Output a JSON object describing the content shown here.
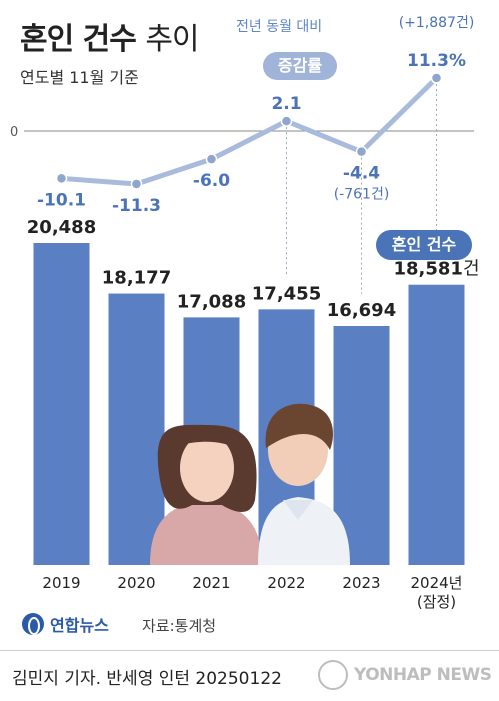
{
  "header": {
    "title_bold": "혼인 건수",
    "title_light": "추이",
    "subtitle": "연도별 11월 기준",
    "rate_header": "전년 동월 대비",
    "rate_badge": "증감률",
    "count_badge": "혼인 건수"
  },
  "chart_data": {
    "type": "bar",
    "categories": [
      "2019",
      "2020",
      "2021",
      "2022",
      "2023",
      "2024년"
    ],
    "category_notes": [
      "",
      "",
      "",
      "",
      "",
      "(잠정)"
    ],
    "series": [
      {
        "name": "혼인 건수",
        "values": [
          20488,
          18177,
          17088,
          17455,
          16694,
          18581
        ],
        "labels": [
          "20,488",
          "18,177",
          "17,088",
          "17,455",
          "16,694",
          "18,581"
        ],
        "last_label_unit": "건",
        "color": "#5b7fc3"
      },
      {
        "name": "증감률",
        "type": "line",
        "values": [
          -10.1,
          -11.3,
          -6.0,
          2.1,
          -4.4,
          11.3
        ],
        "labels": [
          "-10.1",
          "-11.3",
          "-6.0",
          "2.1",
          "-4.4",
          "11.3%"
        ],
        "color": "#a9bbdc"
      }
    ],
    "line_annotations": [
      {
        "index": 4,
        "text": "(-761건)"
      },
      {
        "index": 5,
        "text": "(+1,887건)"
      }
    ],
    "zero_label": "0"
  },
  "footer": {
    "logo": "연합뉴스",
    "source": "자료:통계청",
    "credit": "김민지 기자. 반세영 인턴  20250122",
    "watermark": "YONHAP NEWS"
  }
}
